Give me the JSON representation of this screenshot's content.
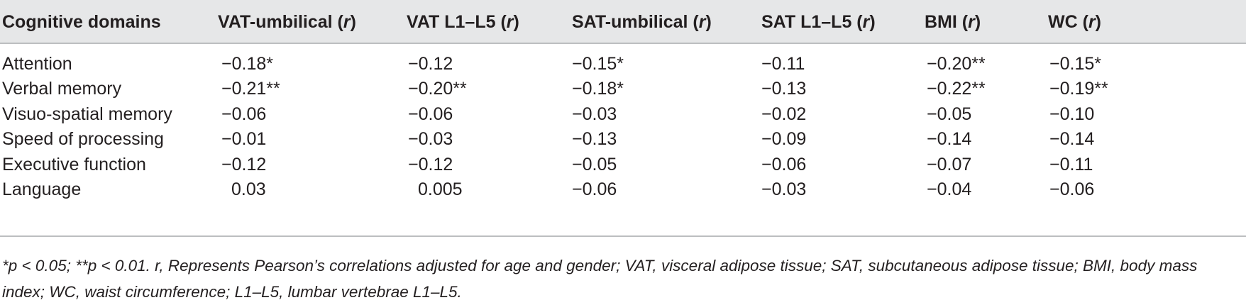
{
  "table": {
    "headers": {
      "domain": "Cognitive domains",
      "columns": [
        {
          "name": "VAT-umbilical",
          "stat": "r"
        },
        {
          "name": "VAT L1–L5",
          "stat": "r"
        },
        {
          "name": "SAT-umbilical",
          "stat": "r"
        },
        {
          "name": "SAT L1–L5",
          "stat": "r"
        },
        {
          "name": "BMI",
          "stat": "r"
        },
        {
          "name": "WC",
          "stat": "r"
        }
      ]
    },
    "rows": [
      {
        "label": "Attention",
        "values": [
          "−0.18*",
          "−0.12",
          "−0.15*",
          "−0.11",
          "−0.20**",
          "−0.15*"
        ]
      },
      {
        "label": "Verbal memory",
        "values": [
          "−0.21**",
          "−0.20**",
          "−0.18*",
          "−0.13",
          "−0.22**",
          "−0.19**"
        ]
      },
      {
        "label": "Visuo-spatial memory",
        "values": [
          "−0.06",
          "−0.06",
          "−0.03",
          "−0.02",
          "−0.05",
          "−0.10"
        ]
      },
      {
        "label": "Speed of processing",
        "values": [
          "−0.01",
          "−0.03",
          "−0.13",
          "−0.09",
          "−0.14",
          "−0.14"
        ]
      },
      {
        "label": "Executive function",
        "values": [
          "−0.12",
          "−0.12",
          "−0.05",
          "−0.06",
          "−0.07",
          "−0.11"
        ]
      },
      {
        "label": "Language",
        "values": [
          "0.03",
          "0.005",
          "−0.06",
          "−0.03",
          "−0.04",
          "−0.06"
        ]
      }
    ]
  },
  "footnote": "*p < 0.05; **p < 0.01. r, Represents Pearson’s correlations adjusted for age and gender; VAT, visceral adipose tissue; SAT, subcutaneous adipose tissue; BMI, body mass index; WC, waist circumference; L1–L5, lumbar vertebrae L1–L5.",
  "colors": {
    "header_background": "#e6e7e8",
    "rule": "#bcbec0",
    "text": "#231f20"
  }
}
